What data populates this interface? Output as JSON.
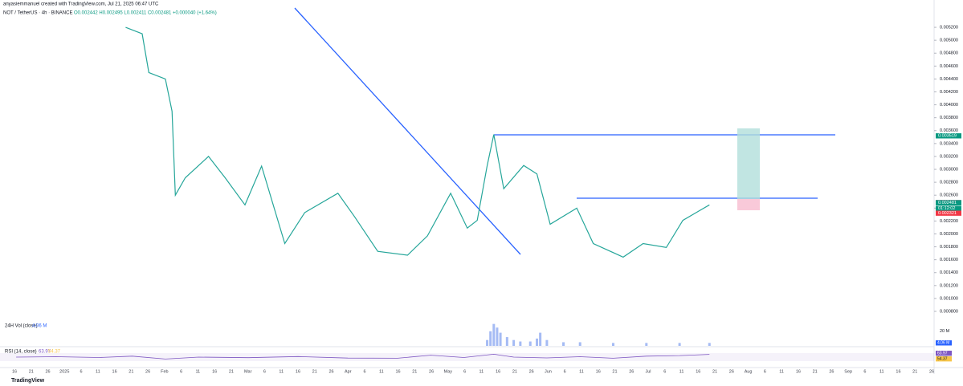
{
  "header": {
    "attribution": "anyasiemmanuel created with TradingView.com, Jul 21, 2025 06:47 UTC",
    "symbol": "NOT / TetherUS · 4h · BINANCE",
    "ohlc": "O0.002442 H0.002495 L0.002411 C0.002481 +0.000040 (+1.64%)",
    "logo": "TradingView"
  },
  "chart_data": {
    "type": "line",
    "color": "#26a69a",
    "x": [
      33,
      38,
      40,
      45,
      47,
      48,
      51,
      58,
      63,
      69,
      74,
      81,
      87,
      97,
      102,
      109,
      118,
      124,
      131,
      136,
      139,
      142,
      144,
      147,
      153,
      157,
      161,
      169,
      174,
      183,
      189,
      196,
      201,
      206,
      209
    ],
    "values": [
      0.0052,
      0.0051,
      0.0045,
      0.0044,
      0.0039,
      0.0026,
      0.00287,
      0.0032,
      0.00287,
      0.00245,
      0.00305,
      0.00185,
      0.00233,
      0.00263,
      0.00227,
      0.00173,
      0.00167,
      0.00197,
      0.00263,
      0.00209,
      0.00221,
      0.00306,
      0.00354,
      0.0027,
      0.00306,
      0.00293,
      0.00215,
      0.0024,
      0.00185,
      0.00164,
      0.00185,
      0.00179,
      0.00221,
      0.00236,
      0.00245
    ],
    "xlim": [
      -0.5,
      276
    ],
    "xticks": [
      "16",
      "21",
      "26",
      "2025",
      "6",
      "11",
      "16",
      "21",
      "26",
      "Feb",
      "6",
      "11",
      "16",
      "21",
      "Mar",
      "6",
      "11",
      "16",
      "21",
      "26",
      "Apr",
      "6",
      "11",
      "16",
      "21",
      "26",
      "May",
      "6",
      "11",
      "16",
      "21",
      "26",
      "Jun",
      "6",
      "11",
      "16",
      "21",
      "26",
      "Jul",
      "6",
      "11",
      "16",
      "21",
      "26",
      "Aug",
      "6",
      "11",
      "16",
      "21",
      "26",
      "Sep",
      "6",
      "11",
      "16",
      "21",
      "26"
    ],
    "ylim": [
      0.00077,
      0.00532
    ],
    "yticks": [
      {
        "value": 0.0008,
        "label": "0.000800"
      },
      {
        "value": 0.001,
        "label": "0.001000"
      },
      {
        "value": 0.0012,
        "label": "0.001200"
      },
      {
        "value": 0.0014,
        "label": "0.001400"
      },
      {
        "value": 0.0016,
        "label": "0.001600"
      },
      {
        "value": 0.0018,
        "label": "0.001800"
      },
      {
        "value": 0.002,
        "label": "0.002000"
      },
      {
        "value": 0.0022,
        "label": "0.002200"
      },
      {
        "value": 0.0024,
        "label": "0.002400"
      },
      {
        "value": 0.0026,
        "label": "0.002600"
      },
      {
        "value": 0.0028,
        "label": "0.002800"
      },
      {
        "value": 0.003,
        "label": "0.003000"
      },
      {
        "value": 0.0032,
        "label": "0.003200"
      },
      {
        "value": 0.0034,
        "label": "0.003400"
      },
      {
        "value": 0.0036,
        "label": "0.003600"
      },
      {
        "value": 0.0038,
        "label": "0.003800"
      },
      {
        "value": 0.004,
        "label": "0.004000"
      },
      {
        "value": 0.0042,
        "label": "0.004200"
      },
      {
        "value": 0.0044,
        "label": "0.004400"
      },
      {
        "value": 0.0046,
        "label": "0.004600"
      },
      {
        "value": 0.0048,
        "label": "0.004800"
      },
      {
        "value": 0.005,
        "label": "0.005000"
      },
      {
        "value": 0.0052,
        "label": "0.005200"
      }
    ],
    "price_labels": [
      {
        "value": 0.003519,
        "label": "0.003519",
        "color": "#089981"
      },
      {
        "value": 0.002486,
        "label": "0.002486",
        "color": "#5d606b"
      },
      {
        "value": 0.002481,
        "label": "0.002481",
        "color": "#089981"
      },
      {
        "label": "01:12:02",
        "color": "#089981"
      },
      {
        "value": 0.002321,
        "label": "0.002321",
        "color": "#f23645"
      }
    ],
    "volume": {
      "title": "24H Vol (close)",
      "last_label": "4.06 M",
      "color": "#7f9ef0",
      "x": [
        142,
        143,
        144,
        145,
        146,
        148,
        150,
        152,
        155,
        157,
        158,
        160,
        165,
        170,
        180,
        190,
        200,
        209
      ],
      "values": [
        8,
        20,
        30,
        25,
        18,
        12,
        8,
        6,
        6,
        10,
        18,
        8,
        5,
        5,
        4,
        4,
        4,
        4.06
      ],
      "ylim": [
        0,
        34
      ],
      "yticks": [
        {
          "value": 20,
          "label": "20 M"
        }
      ]
    },
    "rsi": {
      "title": "RSI (14, close)",
      "value_label": "63.97",
      "ma_label": "54.37",
      "color": "#7e57c2",
      "x": [
        0,
        12,
        25,
        35,
        45,
        55,
        70,
        85,
        100,
        115,
        125,
        135,
        144,
        150,
        160,
        170,
        180,
        190,
        200,
        209
      ],
      "values": [
        50,
        52,
        48,
        55,
        40,
        50,
        47,
        53,
        45,
        44,
        60,
        48,
        65,
        50,
        46,
        52,
        44,
        55,
        58,
        63.97
      ],
      "ylim": [
        0,
        100
      ]
    }
  }
}
